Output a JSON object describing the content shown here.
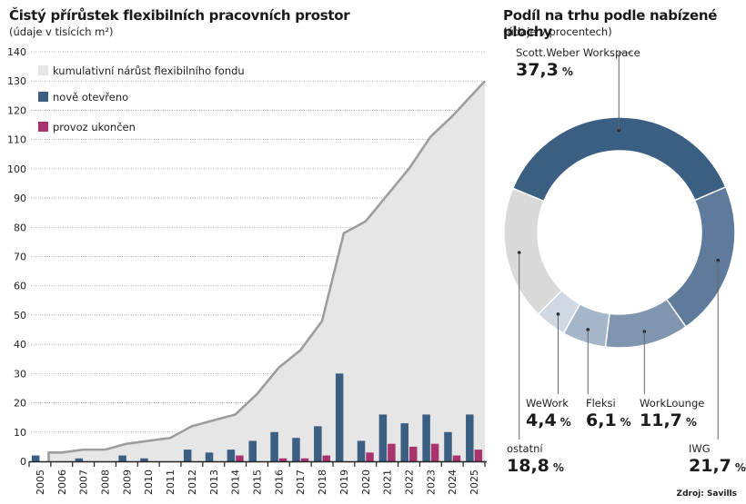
{
  "left_chart": {
    "title": "Čistý přírůstek flexibilních pracovních prostor",
    "subtitle": "(údaje v tisících m²)"
  },
  "right_chart": {
    "title": "Podíl na trhu podle nabízené plochy",
    "subtitle": "(údaje v procentech)"
  },
  "source": "Zdroj: Savills",
  "chart_data": [
    {
      "type": "bar",
      "title": "Čistý přírůstek flexibilních pracovních prostor",
      "subtitle": "(údaje v tisících m²)",
      "xlabel": "",
      "ylabel": "",
      "ylim": [
        0,
        140
      ],
      "yticks": [
        0,
        10,
        20,
        30,
        40,
        50,
        60,
        70,
        80,
        90,
        100,
        110,
        120,
        130,
        140
      ],
      "grid": true,
      "legend_position": "top-left",
      "categories": [
        "2005",
        "2006",
        "2007",
        "2008",
        "2009",
        "2010",
        "2011",
        "2012",
        "2013",
        "2014",
        "2015",
        "2016",
        "2017",
        "2018",
        "2019",
        "2020",
        "2021",
        "2022",
        "2023",
        "2024",
        "2025"
      ],
      "series": [
        {
          "name": "kumulativní nárůst flexibilního fondu",
          "kind": "area",
          "color": "#e6e6e6",
          "line_color": "#9d9d9d",
          "values": [
            3,
            3,
            4,
            4,
            6,
            7,
            8,
            12,
            14,
            16,
            23,
            32,
            38,
            48,
            78,
            82,
            91,
            100,
            111,
            118,
            130
          ]
        },
        {
          "name": "nově otevřeno",
          "kind": "bar",
          "color": "#3a5f82",
          "values": [
            2,
            0,
            1,
            0,
            2,
            1,
            0,
            4,
            3,
            4,
            7,
            10,
            8,
            12,
            30,
            7,
            16,
            13,
            16,
            10,
            16
          ]
        },
        {
          "name": "provoz ukončen",
          "kind": "bar",
          "color": "#a8336e",
          "values": [
            0,
            0,
            0,
            0,
            0,
            0,
            0,
            0,
            0,
            2,
            0,
            1,
            1,
            2,
            0,
            3,
            6,
            5,
            6,
            2,
            4
          ]
        }
      ]
    },
    {
      "type": "pie",
      "donut": true,
      "title": "Podíl na trhu podle nabízené plochy",
      "subtitle": "(údaje v procentech)",
      "unit": "%",
      "slices": [
        {
          "label": "Scott.Weber Workspace",
          "value": 37.3,
          "display": "37,3",
          "color": "#3a5f82"
        },
        {
          "label": "IWG",
          "value": 21.7,
          "display": "21,7",
          "color": "#5e7b9b"
        },
        {
          "label": "WorkLounge",
          "value": 11.7,
          "display": "11,7",
          "color": "#8096b0"
        },
        {
          "label": "Fleksi",
          "value": 6.1,
          "display": "6,1",
          "color": "#a6b6ca"
        },
        {
          "label": "WeWork",
          "value": 4.4,
          "display": "4,4",
          "color": "#cfd8e3"
        },
        {
          "label": "ostatní",
          "value": 18.8,
          "display": "18,8",
          "color": "#d9d9d9"
        }
      ]
    }
  ]
}
